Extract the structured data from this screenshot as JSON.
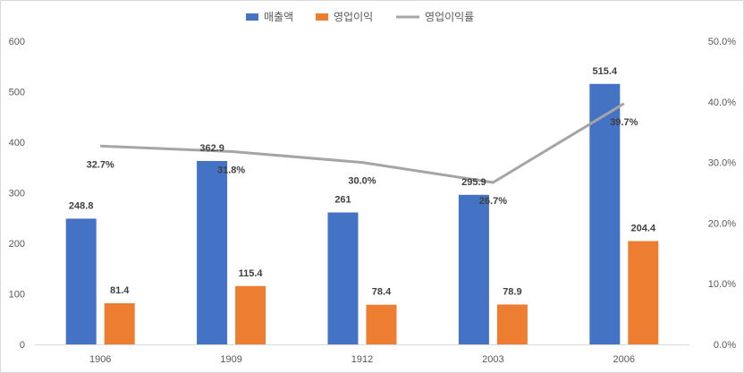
{
  "chart_data": {
    "type": "bar",
    "categories": [
      "1906",
      "1909",
      "1912",
      "2003",
      "2006"
    ],
    "series": [
      {
        "name": "매출액",
        "kind": "bar",
        "axis": "left",
        "color": "#4472c4",
        "values": [
          248.8,
          362.9,
          261,
          295.9,
          515.4
        ],
        "labels": [
          "248.8",
          "362.9",
          "261",
          "295.9",
          "515.4"
        ]
      },
      {
        "name": "영업이익",
        "kind": "bar",
        "axis": "left",
        "color": "#ed7d31",
        "values": [
          81.4,
          115.4,
          78.4,
          78.9,
          204.4
        ],
        "labels": [
          "81.4",
          "115.4",
          "78.4",
          "78.9",
          "204.4"
        ]
      },
      {
        "name": "영업이익률",
        "kind": "line",
        "axis": "right",
        "color": "#a5a5a5",
        "values": [
          32.7,
          31.8,
          30.0,
          26.7,
          39.7
        ],
        "labels": [
          "32.7%",
          "31.8%",
          "30.0%",
          "26.7%",
          "39.7%"
        ]
      }
    ],
    "y_left": {
      "min": 0,
      "max": 600,
      "ticks": [
        "0",
        "100",
        "200",
        "300",
        "400",
        "500",
        "600"
      ]
    },
    "y_right": {
      "min": 0,
      "max": 50,
      "ticks": [
        "0.0%",
        "10.0%",
        "20.0%",
        "30.0%",
        "40.0%",
        "50.0%"
      ]
    },
    "grid": false,
    "legend": "top-center"
  }
}
